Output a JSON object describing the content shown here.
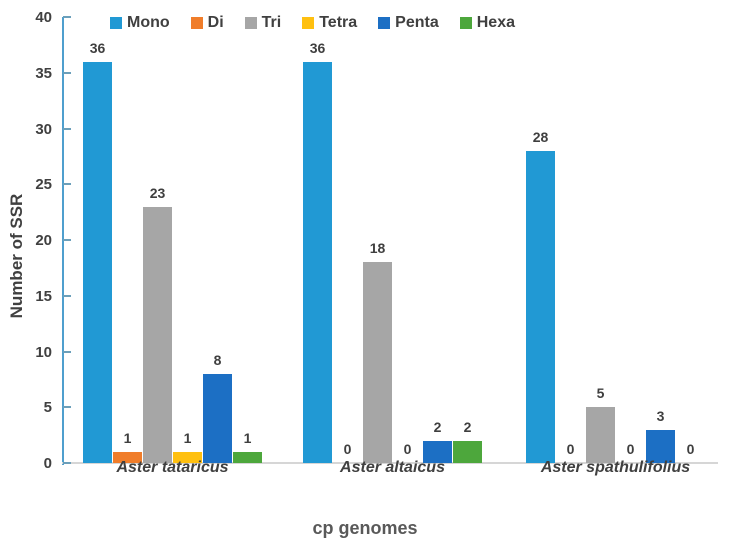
{
  "chart_data": {
    "type": "bar",
    "title": "",
    "xlabel": "cp genomes",
    "ylabel": "Number of SSR",
    "ylim": [
      0,
      40
    ],
    "ytick_step": 5,
    "ytick_labels": [
      "0",
      "5",
      "10",
      "15",
      "20",
      "25",
      "30",
      "35",
      "40"
    ],
    "grid": false,
    "legend_position": "top",
    "categories": [
      "Aster tataricus",
      "Aster altaicus",
      "Aster spathulifolius"
    ],
    "series": [
      {
        "name": "Mono",
        "color": "#2199D4",
        "values": [
          36,
          36,
          28
        ]
      },
      {
        "name": "Di",
        "color": "#F07D2A",
        "values": [
          1,
          0,
          0
        ]
      },
      {
        "name": "Tri",
        "color": "#A6A6A6",
        "values": [
          23,
          18,
          5
        ]
      },
      {
        "name": "Tetra",
        "color": "#FFC010",
        "values": [
          1,
          0,
          0
        ]
      },
      {
        "name": "Penta",
        "color": "#1C6FC4",
        "values": [
          8,
          2,
          3
        ]
      },
      {
        "name": "Hexa",
        "color": "#4DA73C",
        "values": [
          1,
          2,
          0
        ]
      }
    ],
    "data_labels_shown": true,
    "colors": {
      "axis_line": "#4f9fce",
      "baseline": "#d6d6d6",
      "text": "#404040"
    }
  }
}
